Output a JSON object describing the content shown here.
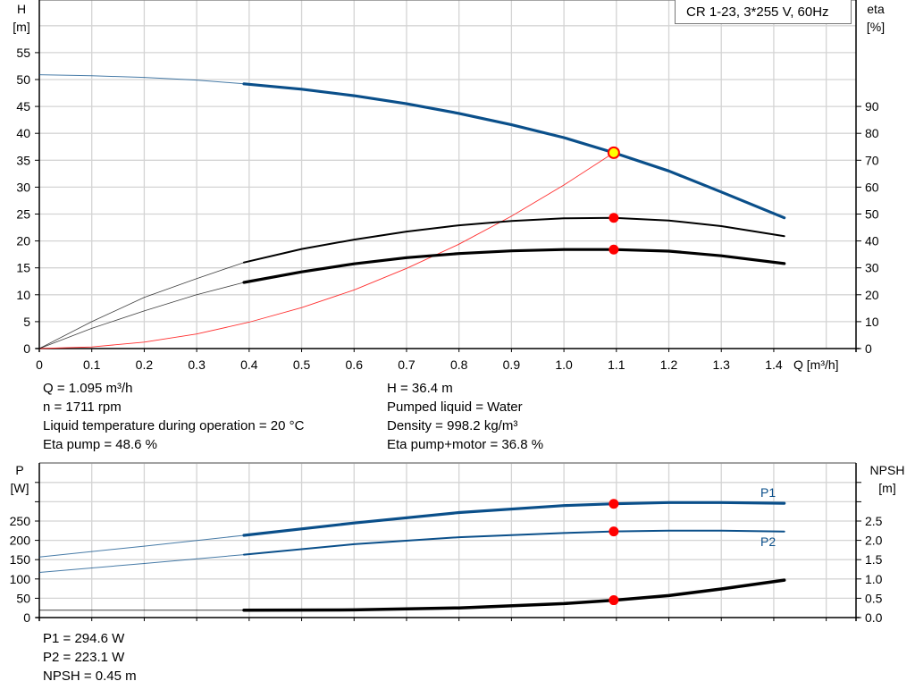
{
  "legend": "CR 1-23, 3*255 V, 60Hz",
  "colors": {
    "head": "#0a4f8a",
    "eta": "#000000",
    "system": "#ff3030",
    "point": "#ff0000",
    "point_highlight": "#ffff00",
    "grid": "#d4d4d4",
    "power": "#0a4f8a",
    "npsh": "#000000"
  },
  "chart_data": [
    {
      "type": "line",
      "xlabel": "Q [m³/h]",
      "ylabel_left": [
        "H",
        "[m]"
      ],
      "ylabel_right": [
        "eta",
        "[%]"
      ],
      "xlim": [
        0,
        1.5
      ],
      "ylim_left": [
        0,
        55
      ],
      "ylim_right": [
        0,
        90
      ],
      "grid": true,
      "x_ticks": [
        "0",
        "0.1",
        "0.2",
        "0.3",
        "0.4",
        "0.5",
        "0.6",
        "0.7",
        "0.8",
        "0.9",
        "1.0",
        "1.1",
        "1.2",
        "1.3",
        "1.4"
      ],
      "y_ticks_left": [
        "0",
        "5",
        "10",
        "15",
        "20",
        "25",
        "30",
        "35",
        "40",
        "45",
        "50",
        "55"
      ],
      "y_ticks_right": [
        "0",
        "10",
        "20",
        "30",
        "40",
        "50",
        "60",
        "70",
        "80",
        "90"
      ],
      "series": [
        {
          "axis": "H",
          "q": [
            0,
            0.1,
            0.2,
            0.3,
            0.39,
            0.5,
            0.6,
            0.7,
            0.8,
            0.9,
            1.0,
            1.095,
            1.2,
            1.3,
            1.42
          ],
          "values": [
            50.9,
            50.7,
            50.4,
            49.9,
            49.2,
            48.2,
            47.0,
            45.5,
            43.7,
            41.6,
            39.2,
            36.4,
            33.0,
            29.1,
            24.3
          ]
        },
        {
          "axis": "eta",
          "q": [
            0,
            0.1,
            0.2,
            0.3,
            0.39,
            0.5,
            0.6,
            0.7,
            0.8,
            0.9,
            1.0,
            1.095,
            1.2,
            1.3,
            1.42
          ],
          "values": [
            0,
            10,
            19,
            26,
            32,
            37,
            40.5,
            43.5,
            45.8,
            47.4,
            48.4,
            48.6,
            47.6,
            45.5,
            41.8
          ]
        },
        {
          "axis": "eta",
          "q": [
            0,
            0.1,
            0.2,
            0.3,
            0.39,
            0.5,
            0.6,
            0.7,
            0.8,
            0.9,
            1.0,
            1.095,
            1.2,
            1.3,
            1.42
          ],
          "values": [
            0,
            7.5,
            14,
            20,
            24.6,
            28.5,
            31.5,
            33.8,
            35.3,
            36.3,
            36.8,
            36.8,
            36.2,
            34.5,
            31.6
          ]
        },
        {
          "axis": "H",
          "q": [
            0,
            0.1,
            0.2,
            0.3,
            0.4,
            0.5,
            0.6,
            0.7,
            0.8,
            0.9,
            1.0,
            1.095
          ],
          "values": [
            0,
            0.3,
            1.2,
            2.7,
            4.9,
            7.6,
            10.9,
            14.9,
            19.4,
            24.6,
            30.4,
            36.4
          ]
        }
      ],
      "operating_point": {
        "q": 1.095,
        "H": 36.4,
        "eta_pump": 48.6,
        "eta_total": 36.8
      }
    },
    {
      "type": "line",
      "ylabel_left": [
        "P",
        "[W]"
      ],
      "ylabel_right": [
        "NPSH",
        "[m]"
      ],
      "xlim": [
        0,
        1.5
      ],
      "ylim_left": [
        0,
        250
      ],
      "ylim_right": [
        0,
        2.5
      ],
      "grid": true,
      "y_ticks_left": [
        "0",
        "50",
        "100",
        "150",
        "200",
        "250"
      ],
      "y_ticks_right": [
        "0.0",
        "0.5",
        "1.0",
        "1.5",
        "2.0",
        "2.5"
      ],
      "series": [
        {
          "name": "P1",
          "axis": "P",
          "q": [
            0,
            0.2,
            0.39,
            0.6,
            0.8,
            1.0,
            1.095,
            1.2,
            1.3,
            1.42
          ],
          "values": [
            157,
            185,
            213,
            245,
            272,
            290,
            294.6,
            298,
            298,
            296
          ]
        },
        {
          "name": "P2",
          "axis": "P",
          "q": [
            0,
            0.2,
            0.39,
            0.6,
            0.8,
            1.0,
            1.095,
            1.2,
            1.3,
            1.42
          ],
          "values": [
            117,
            140,
            163,
            190,
            208,
            219,
            223.1,
            225,
            225,
            223
          ]
        },
        {
          "axis": "NPSH",
          "q": [
            0,
            0.2,
            0.39,
            0.6,
            0.8,
            1.0,
            1.095,
            1.2,
            1.3,
            1.42
          ],
          "values": [
            0.19,
            0.19,
            0.19,
            0.2,
            0.25,
            0.36,
            0.45,
            0.57,
            0.74,
            0.97
          ]
        }
      ],
      "operating_point": {
        "q": 1.095,
        "P1": 294.6,
        "P2": 223.1,
        "NPSH": 0.45
      }
    }
  ],
  "info_top_left": [
    "Q = 1.095 m³/h",
    "n = 1711 rpm",
    "Liquid temperature during operation = 20 °C",
    "Eta pump = 48.6 %"
  ],
  "info_top_right": [
    "H = 36.4 m",
    "Pumped liquid = Water",
    "Density = 998.2 kg/m³",
    "Eta pump+motor = 36.8 %"
  ],
  "info_bottom": [
    "P1 = 294.6 W",
    "P2 = 223.1 W",
    "NPSH = 0.45 m"
  ]
}
